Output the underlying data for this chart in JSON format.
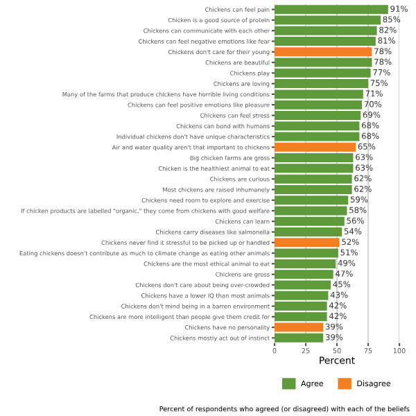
{
  "chart_data": {
    "type": "bar",
    "orientation": "horizontal",
    "xlabel": "Percent",
    "annotations": [
      "Percent of respondents who agreed (or disagreed) with each of the beliefs"
    ],
    "categories": [
      "Chickens can feel pain",
      "Chicken is a good source of protein",
      "Chickens can communicate with each other",
      "Chickens can feel negative emotions like fear",
      "Chickens don't care for their young",
      "Chickens are beautiful",
      "Chickens play",
      "Chickens are loving",
      "Many of the farms that produce chickens have horrible living conditions",
      "Chickens can feel positive emotions like pleasure",
      "Chickens can feel stress",
      "Chickens can bond with humans",
      "Individual chickens don't have unique characteristics",
      "Air and water quality aren't that important to chickens",
      "Big chicken farms are gross",
      "Chicken is the healthiest animal to eat",
      "Chickens are curious",
      "Most chickens are raised inhumanely",
      "Chickens need room to explore and exercise",
      "If chicken products are labelled \"organic,\" they come from chickens with good welfare",
      "Chickens can learn",
      "Chickens carry diseases like salmonella",
      "Chickens never find it stressful to be picked up or handled",
      "Eating chickens doesn't contribute as much to climate change as eating other animals",
      "Chickens are the most ethical animal to eat",
      "Chickens are gross",
      "Chickens don't care about being over-crowded",
      "Chickens have a lower IQ than most animals",
      "Chickens don't mind being in a barren environment",
      "Chickens are more intelligent than people give them credit for",
      "Chickens have no personality",
      "Chickens mostly act out of instinct"
    ],
    "series": [
      {
        "name": "Agree",
        "color": "#5e9a3a",
        "values": [
          91,
          85,
          82,
          81,
          null,
          78,
          77,
          75,
          71,
          70,
          69,
          68,
          68,
          null,
          63,
          63,
          62,
          62,
          59,
          58,
          56,
          54,
          null,
          51,
          49,
          47,
          45,
          43,
          42,
          42,
          null,
          39
        ],
        "value_labels": [
          "91%",
          "85%",
          "82%",
          "81%",
          null,
          "78%",
          "77%",
          "75%",
          "71%",
          "70%",
          "69%",
          "68%",
          "68%",
          null,
          "63%",
          "63%",
          "62%",
          "62%",
          "59%",
          "58%",
          "56%",
          "54%",
          null,
          "51%",
          "49%",
          "47%",
          "45%",
          "43%",
          "42%",
          "42%",
          null,
          "39%"
        ]
      },
      {
        "name": "Disagree",
        "color": "#f07f24",
        "values": [
          null,
          null,
          null,
          null,
          78,
          null,
          null,
          null,
          null,
          null,
          null,
          null,
          null,
          65,
          null,
          null,
          null,
          null,
          null,
          null,
          null,
          null,
          52,
          null,
          null,
          null,
          null,
          null,
          null,
          null,
          39,
          null
        ],
        "value_labels": [
          null,
          null,
          null,
          null,
          "78%",
          null,
          null,
          null,
          null,
          null,
          null,
          null,
          null,
          "65%",
          null,
          null,
          null,
          null,
          null,
          null,
          null,
          null,
          "52%",
          null,
          null,
          null,
          null,
          null,
          null,
          null,
          "39%",
          null
        ]
      }
    ],
    "xlim": [
      0,
      100
    ],
    "xticks": [
      0,
      25,
      50,
      75,
      100
    ],
    "grid": "x",
    "legend": "bottom"
  }
}
